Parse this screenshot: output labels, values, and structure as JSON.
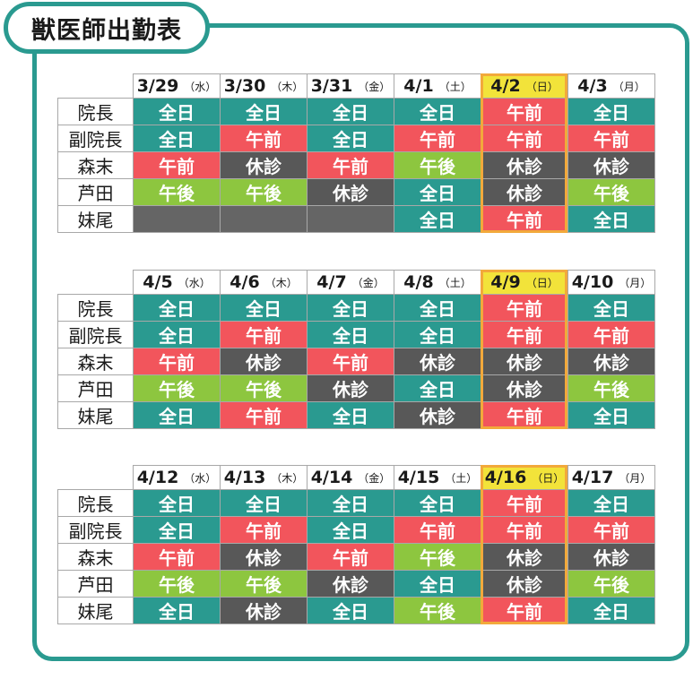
{
  "title": "獣医師出勤表",
  "names": [
    "院長",
    "副院長",
    "森末",
    "芦田",
    "妹尾"
  ],
  "status_labels": {
    "full": "全日",
    "am": "午前",
    "pm": "午後",
    "off": "休診",
    "none": ""
  },
  "highlight_weekday": "日",
  "weeks": [
    {
      "days": [
        {
          "date": "3/29",
          "weekday": "水"
        },
        {
          "date": "3/30",
          "weekday": "木"
        },
        {
          "date": "3/31",
          "weekday": "金"
        },
        {
          "date": "4/1",
          "weekday": "土"
        },
        {
          "date": "4/2",
          "weekday": "日"
        },
        {
          "date": "4/3",
          "weekday": "月"
        }
      ],
      "rows": [
        [
          "full",
          "full",
          "full",
          "full",
          "am",
          "full"
        ],
        [
          "full",
          "am",
          "full",
          "am",
          "am",
          "am"
        ],
        [
          "am",
          "off",
          "am",
          "pm",
          "off",
          "off"
        ],
        [
          "pm",
          "pm",
          "off",
          "full",
          "off",
          "pm"
        ],
        [
          "none",
          "none",
          "none",
          "full",
          "am",
          "full"
        ]
      ]
    },
    {
      "days": [
        {
          "date": "4/5",
          "weekday": "水"
        },
        {
          "date": "4/6",
          "weekday": "木"
        },
        {
          "date": "4/7",
          "weekday": "金"
        },
        {
          "date": "4/8",
          "weekday": "土"
        },
        {
          "date": "4/9",
          "weekday": "日"
        },
        {
          "date": "4/10",
          "weekday": "月"
        }
      ],
      "rows": [
        [
          "full",
          "full",
          "full",
          "full",
          "am",
          "full"
        ],
        [
          "full",
          "am",
          "full",
          "full",
          "am",
          "am"
        ],
        [
          "am",
          "off",
          "am",
          "off",
          "off",
          "off"
        ],
        [
          "pm",
          "pm",
          "off",
          "full",
          "off",
          "pm"
        ],
        [
          "full",
          "am",
          "full",
          "off",
          "am",
          "full"
        ]
      ]
    },
    {
      "days": [
        {
          "date": "4/12",
          "weekday": "水"
        },
        {
          "date": "4/13",
          "weekday": "木"
        },
        {
          "date": "4/14",
          "weekday": "金"
        },
        {
          "date": "4/15",
          "weekday": "土"
        },
        {
          "date": "4/16",
          "weekday": "日"
        },
        {
          "date": "4/17",
          "weekday": "月"
        }
      ],
      "rows": [
        [
          "full",
          "full",
          "full",
          "full",
          "am",
          "full"
        ],
        [
          "full",
          "am",
          "full",
          "am",
          "am",
          "am"
        ],
        [
          "am",
          "off",
          "am",
          "pm",
          "off",
          "off"
        ],
        [
          "pm",
          "pm",
          "off",
          "full",
          "off",
          "pm"
        ],
        [
          "full",
          "off",
          "full",
          "pm",
          "am",
          "full"
        ]
      ]
    }
  ]
}
